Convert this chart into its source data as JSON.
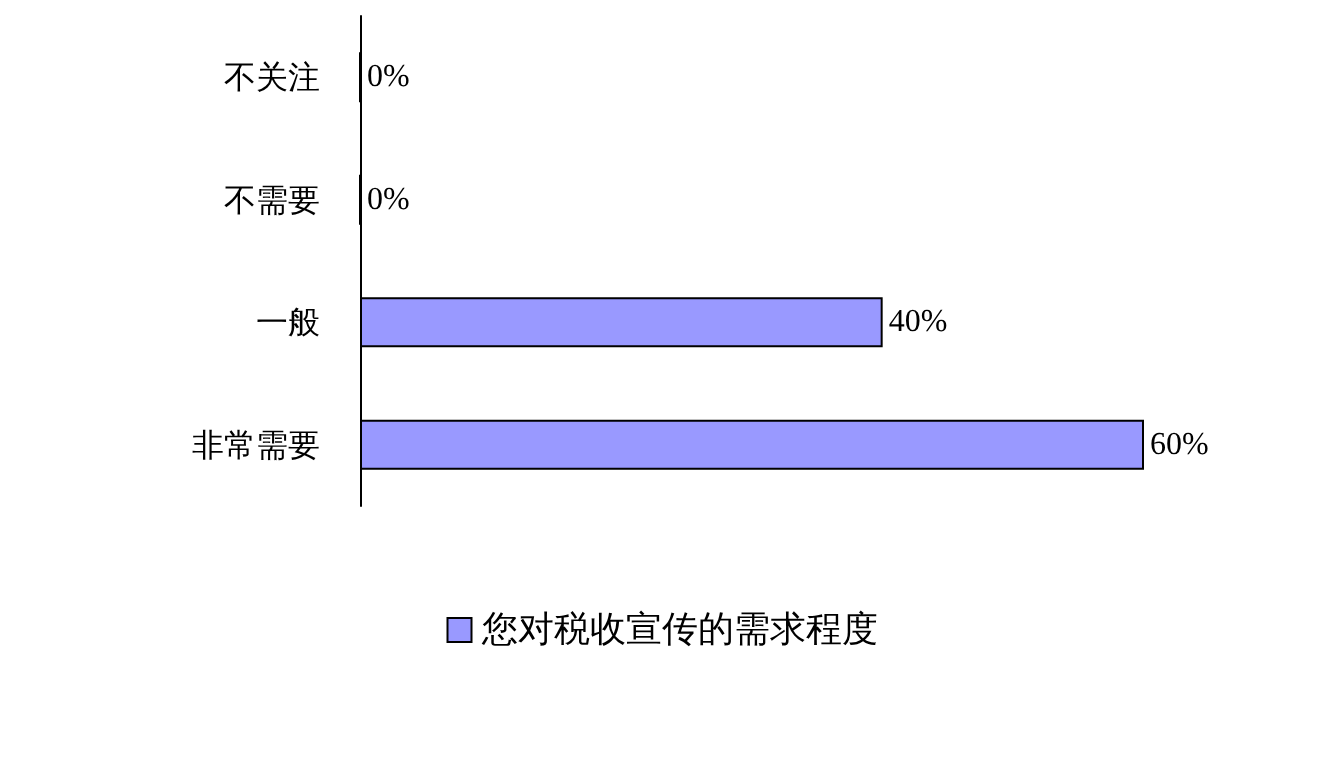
{
  "chart_data": {
    "type": "bar",
    "orientation": "horizontal",
    "categories": [
      "不关注",
      "不需要",
      "一般",
      "非常需要"
    ],
    "series": [
      {
        "name": "您对税收宣传的需求程度",
        "color": "#9999ff",
        "values": [
          0,
          0,
          40,
          60
        ],
        "value_labels": [
          "0%",
          "0%",
          "40%",
          "60%"
        ]
      }
    ],
    "legend": "bottom",
    "grid": false
  }
}
